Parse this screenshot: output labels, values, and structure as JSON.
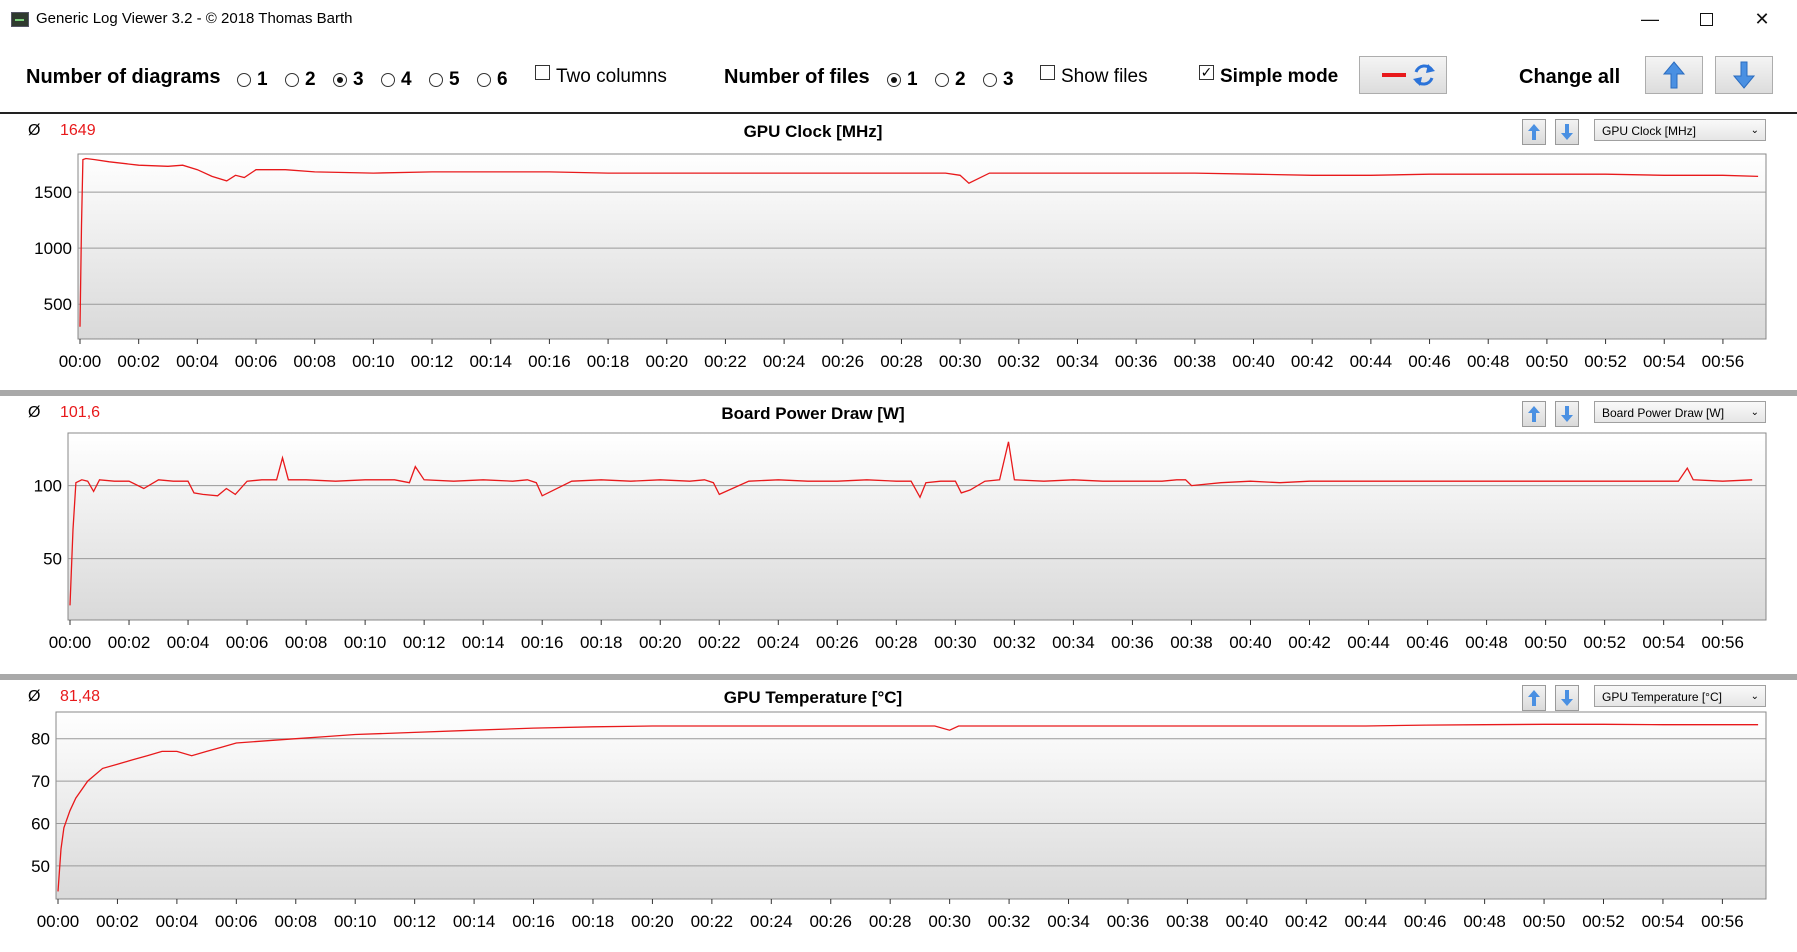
{
  "window": {
    "title": "Generic Log Viewer 3.2 - © 2018 Thomas Barth"
  },
  "toolbar": {
    "num_diagrams_label": "Number of diagrams",
    "diagram_options": [
      "1",
      "2",
      "3",
      "4",
      "5",
      "6"
    ],
    "diagram_selected": "3",
    "two_columns_label": "Two columns",
    "two_columns_checked": false,
    "num_files_label": "Number of files",
    "file_options": [
      "1",
      "2",
      "3"
    ],
    "file_selected": "1",
    "show_files_label": "Show files",
    "show_files_checked": false,
    "simple_mode_label": "Simple mode",
    "simple_mode_checked": true,
    "change_all_label": "Change all",
    "icons": [
      "red-line-icon",
      "refresh-icon",
      "arrow-up-icon",
      "arrow-down-icon"
    ]
  },
  "colors": {
    "series": "#e8191b",
    "grid": "#999999",
    "separator": "#a9a9a9"
  },
  "panels": [
    {
      "avg_symbol": "Ø",
      "avg_value": "1649",
      "title": "GPU Clock [MHz]",
      "dropdown": "GPU Clock [MHz]",
      "chart_data": {
        "type": "line",
        "title": "GPU Clock [MHz]",
        "ylim": [
          190,
          1840
        ],
        "yticks": [
          "500",
          "1000",
          "1500"
        ],
        "ytick_values": [
          500,
          1000,
          1500
        ],
        "xlabel": "",
        "ylabel": "",
        "grid": true,
        "xticks": [
          "00:00",
          "00:02",
          "00:04",
          "00:06",
          "00:08",
          "00:10",
          "00:12",
          "00:14",
          "00:16",
          "00:18",
          "00:20",
          "00:22",
          "00:24",
          "00:26",
          "00:28",
          "00:30",
          "00:32",
          "00:34",
          "00:36",
          "00:38",
          "00:40",
          "00:42",
          "00:44",
          "00:46",
          "00:48",
          "00:50",
          "00:52",
          "00:54",
          "00:56"
        ],
        "x_minutes": [
          0,
          0.05,
          0.1,
          0.2,
          0.5,
          1,
          2,
          3,
          3.5,
          4,
          4.5,
          5,
          5.3,
          5.6,
          6,
          7,
          8,
          10,
          12,
          14,
          16,
          18,
          20,
          22,
          24,
          26,
          28,
          29.5,
          30,
          30.3,
          31,
          32,
          34,
          36,
          38,
          40,
          42,
          44,
          46,
          48,
          50,
          52,
          54,
          56,
          57.2
        ],
        "values": [
          300,
          1200,
          1790,
          1800,
          1790,
          1770,
          1740,
          1730,
          1740,
          1700,
          1640,
          1600,
          1650,
          1630,
          1700,
          1700,
          1680,
          1670,
          1680,
          1680,
          1680,
          1670,
          1670,
          1670,
          1670,
          1670,
          1670,
          1670,
          1650,
          1580,
          1670,
          1670,
          1670,
          1670,
          1670,
          1660,
          1650,
          1650,
          1660,
          1660,
          1660,
          1660,
          1650,
          1650,
          1640
        ],
        "series": [
          {
            "name": "",
            "color": "#e8191b"
          }
        ]
      }
    },
    {
      "avg_symbol": "Ø",
      "avg_value": "101,6",
      "title": "Board Power Draw [W]",
      "dropdown": "Board Power Draw [W]",
      "chart_data": {
        "type": "line",
        "title": "Board Power Draw [W]",
        "ylim": [
          8,
          136
        ],
        "yticks": [
          "50",
          "100"
        ],
        "ytick_values": [
          50,
          100
        ],
        "xlabel": "",
        "ylabel": "",
        "grid": true,
        "xticks": [
          "00:00",
          "00:02",
          "00:04",
          "00:06",
          "00:08",
          "00:10",
          "00:12",
          "00:14",
          "00:16",
          "00:18",
          "00:20",
          "00:22",
          "00:24",
          "00:26",
          "00:28",
          "00:30",
          "00:32",
          "00:34",
          "00:36",
          "00:38",
          "00:40",
          "00:42",
          "00:44",
          "00:46",
          "00:48",
          "00:50",
          "00:52",
          "00:54",
          "00:56"
        ],
        "x_minutes": [
          0,
          0.1,
          0.2,
          0.4,
          0.6,
          0.8,
          1,
          1.5,
          2,
          2.5,
          3,
          3.5,
          4,
          4.2,
          4.5,
          5,
          5.3,
          5.6,
          6,
          6.5,
          7,
          7.2,
          7.4,
          8,
          9,
          10,
          11,
          11.5,
          11.7,
          12,
          13,
          14,
          15,
          15.5,
          15.8,
          16,
          17,
          18,
          19,
          20,
          21,
          21.5,
          21.8,
          22,
          23,
          24,
          25,
          26,
          27,
          28,
          28.5,
          28.8,
          29,
          29.5,
          30,
          30.2,
          30.5,
          31,
          31.5,
          31.8,
          32,
          33,
          34,
          35,
          36,
          37,
          37.5,
          37.8,
          38,
          39,
          40,
          41,
          42,
          43,
          44,
          45,
          46,
          47,
          48,
          49,
          50,
          51,
          52,
          53,
          54,
          54.5,
          54.8,
          55,
          56,
          57
        ],
        "values": [
          18,
          70,
          102,
          104,
          103,
          96,
          104,
          103,
          103,
          98,
          104,
          103,
          103,
          95,
          94,
          93,
          98,
          94,
          103,
          104,
          104,
          119,
          104,
          104,
          103,
          104,
          104,
          102,
          113,
          104,
          103,
          104,
          103,
          104,
          102,
          93,
          103,
          104,
          103,
          104,
          103,
          104,
          102,
          94,
          103,
          104,
          103,
          103,
          104,
          103,
          103,
          92,
          102,
          103,
          103,
          95,
          97,
          103,
          104,
          130,
          104,
          103,
          104,
          103,
          103,
          103,
          104,
          104,
          100,
          102,
          103,
          102,
          103,
          103,
          103,
          103,
          103,
          103,
          103,
          103,
          103,
          103,
          103,
          103,
          103,
          103,
          112,
          104,
          103,
          104
        ],
        "series": [
          {
            "name": "",
            "color": "#e8191b"
          }
        ]
      }
    },
    {
      "avg_symbol": "Ø",
      "avg_value": "81,48",
      "title": "GPU Temperature [°C]",
      "dropdown": "GPU Temperature [°C]",
      "chart_data": {
        "type": "line",
        "title": "GPU Temperature [°C]",
        "ylim": [
          42.2,
          86.3
        ],
        "yticks": [
          "50",
          "60",
          "70",
          "80"
        ],
        "ytick_values": [
          50,
          60,
          70,
          80
        ],
        "xlabel": "",
        "ylabel": "",
        "grid": true,
        "xticks": [
          "00:00",
          "00:02",
          "00:04",
          "00:06",
          "00:08",
          "00:10",
          "00:12",
          "00:14",
          "00:16",
          "00:18",
          "00:20",
          "00:22",
          "00:24",
          "00:26",
          "00:28",
          "00:30",
          "00:32",
          "00:34",
          "00:36",
          "00:38",
          "00:40",
          "00:42",
          "00:44",
          "00:46",
          "00:48",
          "00:50",
          "00:52",
          "00:54",
          "00:56"
        ],
        "x_minutes": [
          0,
          0.1,
          0.2,
          0.4,
          0.6,
          1,
          1.5,
          2,
          2.5,
          3,
          3.5,
          4,
          4.5,
          5,
          5.5,
          6,
          7,
          8,
          9,
          10,
          12,
          14,
          16,
          18,
          20,
          22,
          24,
          26,
          28,
          29.5,
          30,
          30.3,
          31,
          32,
          34,
          36,
          38,
          40,
          42,
          44,
          46,
          48,
          50,
          52,
          54,
          56,
          57.2
        ],
        "values": [
          44,
          54,
          59,
          63,
          66,
          70,
          73,
          74,
          75,
          76,
          77,
          77,
          76,
          77,
          78,
          79,
          79.5,
          80,
          80.5,
          81,
          81.5,
          82,
          82.5,
          82.8,
          83,
          83,
          83,
          83,
          83,
          83,
          82,
          83,
          83,
          83,
          83,
          83,
          83,
          83,
          83,
          83,
          83.2,
          83.3,
          83.4,
          83.4,
          83.3,
          83.3,
          83.3
        ],
        "series": [
          {
            "name": "",
            "color": "#e8191b"
          }
        ]
      }
    }
  ]
}
